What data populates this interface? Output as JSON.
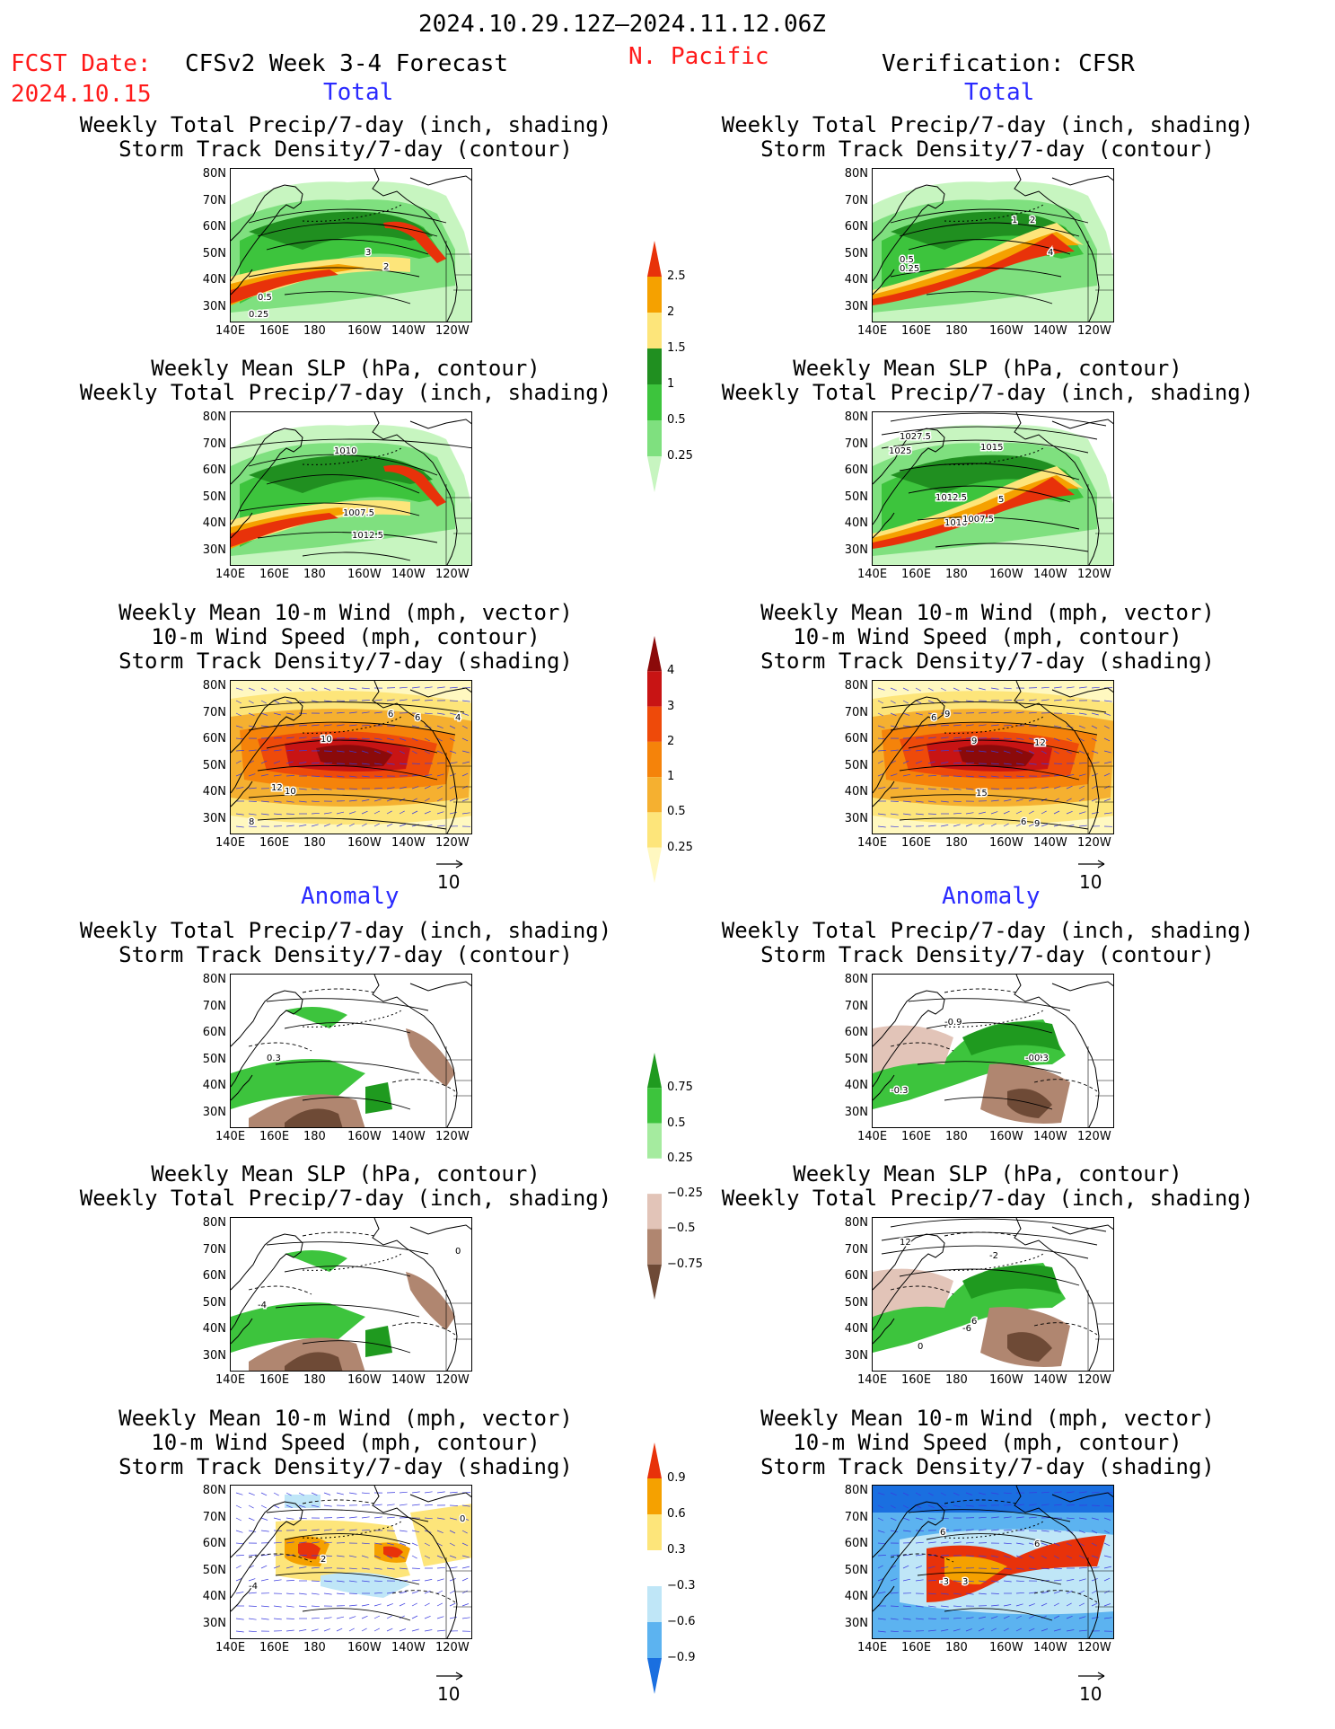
{
  "header": {
    "date_range": "2024.10.29.12Z–2024.11.12.06Z",
    "fcst_label": "FCST Date:",
    "fcst_date": "2024.10.15",
    "model": "CFSv2 Week 3-4 Forecast",
    "region": "N. Pacific",
    "verification": "Verification: CFSR"
  },
  "sections": {
    "total": "Total",
    "anomaly": "Anomaly"
  },
  "titles": {
    "precip_storm": [
      "Weekly Total Precip/7-day (inch, shading)",
      "Storm Track Density/7-day (contour)"
    ],
    "slp_precip": [
      "Weekly Mean SLP (hPa, contour)",
      "Weekly Total Precip/7-day (inch, shading)"
    ],
    "wind": [
      "Weekly Mean 10-m Wind (mph, vector)",
      "10-m Wind Speed (mph, contour)",
      "Storm Track Density/7-day (shading)"
    ]
  },
  "axes": {
    "lat": [
      "80N",
      "70N",
      "60N",
      "50N",
      "40N",
      "30N"
    ],
    "lon": [
      "140E",
      "160E",
      "180",
      "160W",
      "140W",
      "120W"
    ]
  },
  "vector_ref": "10",
  "colorbars": {
    "precip_total": {
      "labels": [
        "2.5",
        "2",
        "1.5",
        "1",
        "0.5",
        "0.25"
      ],
      "colors": [
        "#e8320a",
        "#f5a100",
        "#fde57a",
        "#208f20",
        "#3dc43d",
        "#7fe07f",
        "#c7f5c0"
      ]
    },
    "storm_total": {
      "labels": [
        "4",
        "3",
        "2",
        "1",
        "0.5",
        "0.25"
      ],
      "colors": [
        "#8b0a0a",
        "#c81414",
        "#ee4a0a",
        "#f5830a",
        "#f5b030",
        "#fde57a",
        "#fff8c0"
      ]
    },
    "precip_anom": {
      "labels": [
        "0.75",
        "0.5",
        "0.25",
        "−0.25",
        "−0.5",
        "−0.75"
      ],
      "colors": [
        "#1f9a1f",
        "#3dc43d",
        "#a5eb9f",
        "#ffffff",
        "#e2c4b8",
        "#b08670",
        "#6e4a36"
      ]
    },
    "storm_anom": {
      "labels": [
        "0.9",
        "0.6",
        "0.3",
        "−0.3",
        "−0.6",
        "−0.9"
      ],
      "colors": [
        "#e8320a",
        "#f5a100",
        "#fde57a",
        "#ffffff",
        "#bfe6f7",
        "#5cb3f0",
        "#1a6fe0"
      ]
    }
  },
  "panels": [
    {
      "id": "fc-total-precip",
      "labels": [
        "3",
        "2",
        "0.5",
        "0.25"
      ]
    },
    {
      "id": "fc-total-slp",
      "labels": [
        "1010",
        "1007.5",
        "1012.5"
      ]
    },
    {
      "id": "fc-total-wind",
      "labels": [
        "10",
        "6",
        "6",
        "4",
        "12",
        "10",
        "8"
      ]
    },
    {
      "id": "obs-total-precip",
      "labels": [
        "1",
        "2",
        "4",
        "0.5",
        "0.25"
      ]
    },
    {
      "id": "obs-total-slp",
      "labels": [
        "1027.5",
        "1025",
        "1015",
        "5",
        "1012.5",
        "1010",
        "1007.5"
      ]
    },
    {
      "id": "obs-total-wind",
      "labels": [
        "6",
        "9",
        "9",
        "12",
        "15",
        "6",
        "9"
      ]
    },
    {
      "id": "fc-anom-precip",
      "labels": [
        "0.3"
      ]
    },
    {
      "id": "fc-anom-slp",
      "labels": [
        "-4",
        "0"
      ]
    },
    {
      "id": "fc-anom-wind",
      "labels": [
        "2",
        "-4",
        "0"
      ]
    },
    {
      "id": "obs-anom-precip",
      "labels": [
        "-0.9",
        "-0.9",
        "0.3",
        "-0.3"
      ]
    },
    {
      "id": "obs-anom-slp",
      "labels": [
        "12",
        "-2",
        "-6",
        "6",
        "0"
      ]
    },
    {
      "id": "obs-anom-wind",
      "labels": [
        "6",
        "6",
        "-3",
        "3"
      ]
    }
  ]
}
